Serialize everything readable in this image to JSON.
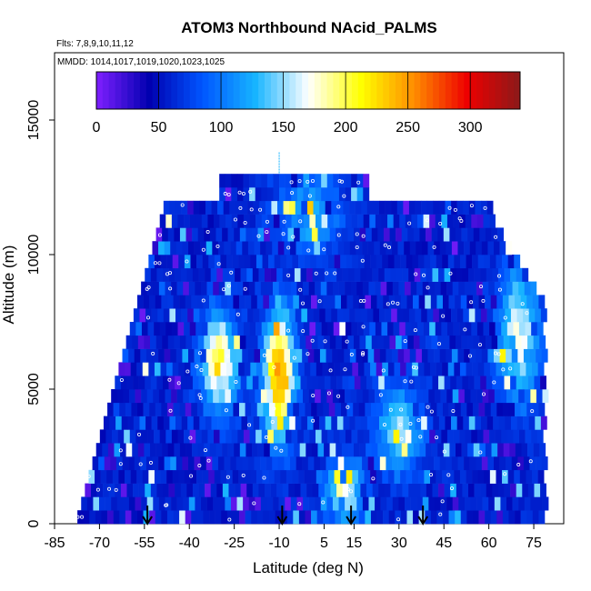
{
  "chart_data": {
    "type": "heatmap",
    "title": "ATOM3 Northbound NAcid_PALMS",
    "subtitle_flights": "Flts: 7,8,9,10,11,12",
    "subtitle_dates": "MMDD: 1014,1017,1019,1020,1023,1025",
    "xlabel": "Latitude (deg N)",
    "ylabel": "Altitude (m)",
    "xlim": [
      -85,
      85
    ],
    "ylim": [
      0,
      17500
    ],
    "x_ticks": [
      -85,
      -70,
      -55,
      -40,
      -25,
      -10,
      5,
      15,
      30,
      45,
      60,
      75
    ],
    "y_ticks": [
      0,
      5000,
      10000,
      15000
    ],
    "colorbar": {
      "min": 0,
      "max": 340,
      "ticks": [
        0,
        50,
        100,
        150,
        200,
        250,
        300
      ],
      "palette": [
        "#7f1fff",
        "#0000b0",
        "#0055ff",
        "#17b4ff",
        "#ffffff",
        "#ffff00",
        "#ff8c00",
        "#ee0000",
        "#8b1a1a"
      ]
    },
    "arrow_latitudes": [
      -54,
      -9,
      14,
      38
    ],
    "grid": false
  }
}
